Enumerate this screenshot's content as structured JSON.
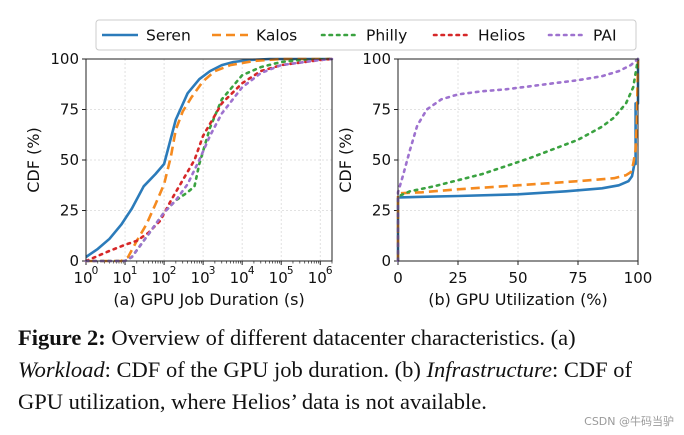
{
  "chart_data": [
    {
      "type": "line",
      "panel": "a",
      "xscale": "log",
      "xlim": [
        1,
        2000000
      ],
      "ylim": [
        0,
        100
      ],
      "xticks": [
        1,
        10,
        100,
        1000,
        10000,
        100000,
        1000000
      ],
      "xtick_labels": [
        [
          "10",
          "0"
        ],
        [
          "10",
          "1"
        ],
        [
          "10",
          "2"
        ],
        [
          "10",
          "3"
        ],
        [
          "10",
          "4"
        ],
        [
          "10",
          "5"
        ],
        [
          "10",
          "6"
        ]
      ],
      "yticks": [
        0,
        25,
        50,
        75,
        100
      ],
      "ylabel": "CDF (%)",
      "xlabel": "(a) GPU Job Duration (s)",
      "grid": true,
      "series": [
        {
          "name": "Seren",
          "x": [
            1,
            2,
            4,
            8,
            15,
            30,
            60,
            100,
            200,
            400,
            800,
            1500,
            3000,
            6000,
            15000,
            50000,
            200000,
            2000000
          ],
          "y": [
            2,
            6,
            11,
            18,
            26,
            37,
            43,
            48,
            70,
            83,
            90,
            94,
            97,
            98.5,
            99.5,
            100,
            100,
            100
          ]
        },
        {
          "name": "Kalos",
          "x": [
            1,
            8,
            12,
            20,
            35,
            60,
            100,
            150,
            200,
            300,
            500,
            1000,
            2000,
            5000,
            20000,
            100000,
            1000000,
            2000000
          ],
          "y": [
            0,
            0,
            2,
            10,
            18,
            28,
            38,
            52,
            65,
            74,
            81,
            89,
            94,
            97,
            99,
            100,
            100,
            100
          ]
        },
        {
          "name": "Philly",
          "x": [
            1,
            10,
            15,
            30,
            60,
            100,
            200,
            400,
            600,
            800,
            1500,
            3000,
            10000,
            30000,
            100000,
            300000,
            2000000
          ],
          "y": [
            0,
            0,
            2,
            10,
            18,
            24,
            30,
            34,
            37,
            48,
            66,
            80,
            92,
            96,
            98.5,
            99.5,
            100
          ]
        },
        {
          "name": "Helios",
          "x": [
            1,
            4,
            10,
            20,
            40,
            80,
            150,
            300,
            600,
            1000,
            3000,
            10000,
            30000,
            100000,
            1000000,
            2000000
          ],
          "y": [
            0,
            5,
            8,
            10,
            14,
            20,
            30,
            40,
            50,
            62,
            78,
            88,
            94,
            97,
            99.5,
            100
          ]
        },
        {
          "name": "PAI",
          "x": [
            1,
            10,
            15,
            30,
            60,
            100,
            200,
            400,
            800,
            1500,
            3000,
            10000,
            30000,
            100000,
            1000000,
            2000000
          ],
          "y": [
            0,
            0,
            2,
            10,
            18,
            24,
            30,
            38,
            50,
            62,
            73,
            86,
            93,
            97,
            99.5,
            100
          ]
        }
      ]
    },
    {
      "type": "line",
      "panel": "b",
      "xlim": [
        0,
        100
      ],
      "ylim": [
        0,
        100
      ],
      "xticks": [
        0,
        25,
        50,
        75,
        100
      ],
      "yticks": [
        0,
        25,
        50,
        75,
        100
      ],
      "ylabel": "CDF (%)",
      "xlabel": "(b) GPU Utilization (%)",
      "grid": true,
      "series": [
        {
          "name": "Seren",
          "x": [
            0,
            0,
            0.5,
            10,
            25,
            50,
            70,
            85,
            92,
            96,
            97.5,
            98.5,
            99,
            99,
            100,
            100
          ],
          "y": [
            0,
            31,
            31.5,
            31.8,
            32.2,
            33,
            34.5,
            36,
            37.5,
            39.5,
            42,
            48,
            48,
            78,
            78,
            100
          ]
        },
        {
          "name": "Kalos",
          "x": [
            0,
            0,
            0.5,
            10,
            25,
            50,
            75,
            90,
            95,
            97,
            98,
            99,
            99.5,
            100
          ],
          "y": [
            0,
            33,
            33.5,
            34,
            35.5,
            37.5,
            39.5,
            41,
            42.5,
            44,
            48,
            55,
            68,
            100
          ]
        },
        {
          "name": "Philly",
          "x": [
            0,
            0,
            5,
            15,
            25,
            35,
            45,
            55,
            65,
            75,
            85,
            90,
            95,
            98,
            100
          ],
          "y": [
            0,
            32,
            34.5,
            37,
            40,
            43,
            47,
            51,
            55.5,
            60,
            66.5,
            71,
            78,
            86,
            100
          ]
        },
        {
          "name": "PAI",
          "x": [
            0,
            0,
            2,
            5,
            8,
            12,
            18,
            25,
            35,
            45,
            55,
            65,
            75,
            85,
            92,
            97,
            100
          ],
          "y": [
            0,
            34,
            42,
            55,
            67,
            75,
            80,
            82.5,
            84,
            85,
            86.5,
            88,
            89.5,
            91.5,
            94,
            97,
            100
          ]
        }
      ]
    }
  ],
  "legend": {
    "placement": "top-center",
    "items": [
      {
        "name": "Seren",
        "color": "#2b7bba",
        "dash": "solid"
      },
      {
        "name": "Kalos",
        "color": "#f58a1f",
        "dash": "dashed"
      },
      {
        "name": "Philly",
        "color": "#3aa240",
        "dash": "dotted"
      },
      {
        "name": "Helios",
        "color": "#d62728",
        "dash": "dotted"
      },
      {
        "name": "PAI",
        "color": "#9e72cf",
        "dash": "dotted"
      }
    ]
  },
  "caption": {
    "label": "Figure 2:",
    "part1": " Overview of different datacenter characteristics. (a) ",
    "workload": "Workload",
    "part2": ": CDF of the GPU job duration. (b) ",
    "infrastructure": "Infrastructure",
    "part3": ": CDF of GPU utilization, where Helios’ data is not available."
  },
  "watermark": "CSDN @牛码当驴"
}
